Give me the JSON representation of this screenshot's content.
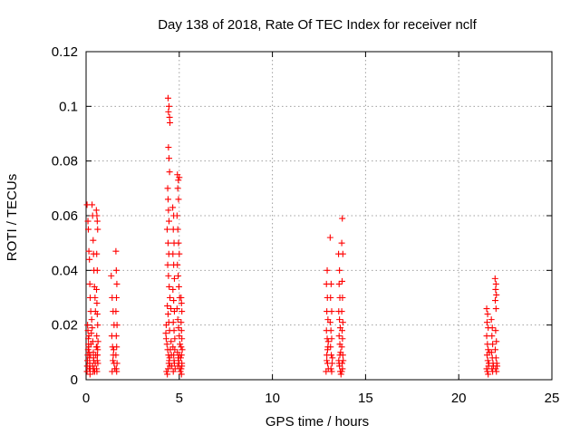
{
  "chart_data": {
    "type": "scatter",
    "title": "Day 138 of 2018, Rate Of TEC Index for receiver nclf",
    "xlabel": "GPS time / hours",
    "ylabel": "ROTI / TECUs",
    "xlim": [
      0,
      25
    ],
    "ylim": [
      0,
      0.12
    ],
    "xticks": [
      0,
      5,
      10,
      15,
      20,
      25
    ],
    "xtick_labels": [
      "0",
      "5",
      "10",
      "15",
      "20",
      "25"
    ],
    "yticks": [
      0,
      0.02,
      0.04,
      0.06,
      0.08,
      0.1,
      0.12
    ],
    "ytick_labels": [
      "0",
      "0.02",
      "0.04",
      "0.06",
      "0.08",
      "0.1",
      "0.12"
    ],
    "grid": true,
    "marker": "+",
    "color": "#ff0000",
    "series": [
      {
        "name": "ROTI",
        "points": [
          [
            0.05,
            0.064
          ],
          [
            0.1,
            0.058
          ],
          [
            0.12,
            0.055
          ],
          [
            0.15,
            0.047
          ],
          [
            0.18,
            0.044
          ],
          [
            0.2,
            0.035
          ],
          [
            0.22,
            0.03
          ],
          [
            0.25,
            0.025
          ],
          [
            0.08,
            0.02
          ],
          [
            0.1,
            0.018
          ],
          [
            0.12,
            0.015
          ],
          [
            0.14,
            0.012
          ],
          [
            0.16,
            0.01
          ],
          [
            0.18,
            0.008
          ],
          [
            0.2,
            0.006
          ],
          [
            0.22,
            0.004
          ],
          [
            0.05,
            0.003
          ],
          [
            0.06,
            0.005
          ],
          [
            0.07,
            0.007
          ],
          [
            0.09,
            0.009
          ],
          [
            0.11,
            0.011
          ],
          [
            0.13,
            0.013
          ],
          [
            0.15,
            0.016
          ],
          [
            0.17,
            0.004
          ],
          [
            0.19,
            0.006
          ],
          [
            0.21,
            0.002
          ],
          [
            0.24,
            0.009
          ],
          [
            0.26,
            0.013
          ],
          [
            0.28,
            0.017
          ],
          [
            0.3,
            0.022
          ],
          [
            0.32,
            0.064
          ],
          [
            0.35,
            0.06
          ],
          [
            0.38,
            0.051
          ],
          [
            0.4,
            0.046
          ],
          [
            0.42,
            0.04
          ],
          [
            0.45,
            0.034
          ],
          [
            0.48,
            0.03
          ],
          [
            0.5,
            0.025
          ],
          [
            0.33,
            0.019
          ],
          [
            0.36,
            0.014
          ],
          [
            0.39,
            0.01
          ],
          [
            0.41,
            0.007
          ],
          [
            0.43,
            0.004
          ],
          [
            0.46,
            0.003
          ],
          [
            0.49,
            0.006
          ],
          [
            0.52,
            0.009
          ],
          [
            0.55,
            0.012
          ],
          [
            0.35,
            0.005
          ],
          [
            0.38,
            0.003
          ],
          [
            0.4,
            0.008
          ],
          [
            0.55,
            0.062
          ],
          [
            0.58,
            0.06
          ],
          [
            0.6,
            0.058
          ],
          [
            0.62,
            0.055
          ],
          [
            0.57,
            0.046
          ],
          [
            0.6,
            0.04
          ],
          [
            0.56,
            0.033
          ],
          [
            0.58,
            0.028
          ],
          [
            0.6,
            0.024
          ],
          [
            0.62,
            0.02
          ],
          [
            0.57,
            0.016
          ],
          [
            0.59,
            0.012
          ],
          [
            0.61,
            0.009
          ],
          [
            0.63,
            0.006
          ],
          [
            0.56,
            0.004
          ],
          [
            0.58,
            0.003
          ],
          [
            0.6,
            0.007
          ],
          [
            0.62,
            0.011
          ],
          [
            0.64,
            0.014
          ],
          [
            1.35,
            0.038
          ],
          [
            1.4,
            0.03
          ],
          [
            1.45,
            0.025
          ],
          [
            1.5,
            0.02
          ],
          [
            1.38,
            0.016
          ],
          [
            1.42,
            0.012
          ],
          [
            1.46,
            0.009
          ],
          [
            1.5,
            0.006
          ],
          [
            1.54,
            0.004
          ],
          [
            1.4,
            0.003
          ],
          [
            1.44,
            0.007
          ],
          [
            1.48,
            0.011
          ],
          [
            1.6,
            0.047
          ],
          [
            1.62,
            0.04
          ],
          [
            1.65,
            0.035
          ],
          [
            1.63,
            0.03
          ],
          [
            1.6,
            0.025
          ],
          [
            1.66,
            0.02
          ],
          [
            1.62,
            0.016
          ],
          [
            1.64,
            0.012
          ],
          [
            1.6,
            0.009
          ],
          [
            1.66,
            0.006
          ],
          [
            1.62,
            0.004
          ],
          [
            1.64,
            0.003
          ],
          [
            4.4,
            0.103
          ],
          [
            4.45,
            0.1
          ],
          [
            4.42,
            0.098
          ],
          [
            4.48,
            0.096
          ],
          [
            4.5,
            0.094
          ],
          [
            4.42,
            0.085
          ],
          [
            4.45,
            0.081
          ],
          [
            4.48,
            0.076
          ],
          [
            4.38,
            0.07
          ],
          [
            4.4,
            0.066
          ],
          [
            4.42,
            0.062
          ],
          [
            4.45,
            0.058
          ],
          [
            4.35,
            0.055
          ],
          [
            4.4,
            0.05
          ],
          [
            4.44,
            0.046
          ],
          [
            4.38,
            0.042
          ],
          [
            4.42,
            0.038
          ],
          [
            4.46,
            0.034
          ],
          [
            4.5,
            0.03
          ],
          [
            4.36,
            0.027
          ],
          [
            4.4,
            0.024
          ],
          [
            4.44,
            0.021
          ],
          [
            4.48,
            0.018
          ],
          [
            4.3,
            0.015
          ],
          [
            4.34,
            0.013
          ],
          [
            4.38,
            0.011
          ],
          [
            4.42,
            0.009
          ],
          [
            4.46,
            0.007
          ],
          [
            4.5,
            0.005
          ],
          [
            4.32,
            0.003
          ],
          [
            4.36,
            0.002
          ],
          [
            4.4,
            0.004
          ],
          [
            4.44,
            0.006
          ],
          [
            4.48,
            0.008
          ],
          [
            4.52,
            0.011
          ],
          [
            4.28,
            0.017
          ],
          [
            4.3,
            0.02
          ],
          [
            4.55,
            0.026
          ],
          [
            4.56,
            0.014
          ],
          [
            4.58,
            0.009
          ],
          [
            4.6,
            0.005
          ],
          [
            4.65,
            0.063
          ],
          [
            4.7,
            0.06
          ],
          [
            4.68,
            0.055
          ],
          [
            4.72,
            0.05
          ],
          [
            4.66,
            0.046
          ],
          [
            4.7,
            0.042
          ],
          [
            4.74,
            0.037
          ],
          [
            4.66,
            0.033
          ],
          [
            4.7,
            0.029
          ],
          [
            4.74,
            0.025
          ],
          [
            4.68,
            0.021
          ],
          [
            4.72,
            0.018
          ],
          [
            4.76,
            0.015
          ],
          [
            4.66,
            0.012
          ],
          [
            4.7,
            0.009
          ],
          [
            4.74,
            0.006
          ],
          [
            4.78,
            0.004
          ],
          [
            4.68,
            0.003
          ],
          [
            4.72,
            0.007
          ],
          [
            4.76,
            0.011
          ],
          [
            4.9,
            0.075
          ],
          [
            4.95,
            0.073
          ],
          [
            5.0,
            0.074
          ],
          [
            4.92,
            0.07
          ],
          [
            4.96,
            0.066
          ],
          [
            4.88,
            0.06
          ],
          [
            4.92,
            0.055
          ],
          [
            4.96,
            0.05
          ],
          [
            5.0,
            0.046
          ],
          [
            4.9,
            0.042
          ],
          [
            4.94,
            0.038
          ],
          [
            4.98,
            0.034
          ],
          [
            5.02,
            0.03
          ],
          [
            4.88,
            0.026
          ],
          [
            4.92,
            0.022
          ],
          [
            4.96,
            0.019
          ],
          [
            5.0,
            0.016
          ],
          [
            5.04,
            0.013
          ],
          [
            4.9,
            0.01
          ],
          [
            4.94,
            0.008
          ],
          [
            4.98,
            0.006
          ],
          [
            5.02,
            0.004
          ],
          [
            5.06,
            0.003
          ],
          [
            4.92,
            0.005
          ],
          [
            4.96,
            0.007
          ],
          [
            5.0,
            0.009
          ],
          [
            5.1,
            0.03
          ],
          [
            5.12,
            0.028
          ],
          [
            5.14,
            0.025
          ],
          [
            5.1,
            0.021
          ],
          [
            5.12,
            0.018
          ],
          [
            5.14,
            0.015
          ],
          [
            5.1,
            0.012
          ],
          [
            5.12,
            0.009
          ],
          [
            5.14,
            0.006
          ],
          [
            5.1,
            0.004
          ],
          [
            5.12,
            0.002
          ],
          [
            5.14,
            0.005
          ],
          [
            5.08,
            0.008
          ],
          [
            5.16,
            0.011
          ],
          [
            12.9,
            0.035
          ],
          [
            12.95,
            0.03
          ],
          [
            12.92,
            0.025
          ],
          [
            12.98,
            0.022
          ],
          [
            12.9,
            0.018
          ],
          [
            12.94,
            0.015
          ],
          [
            12.98,
            0.012
          ],
          [
            12.92,
            0.009
          ],
          [
            12.96,
            0.006
          ],
          [
            13.0,
            0.004
          ],
          [
            12.88,
            0.003
          ],
          [
            12.92,
            0.007
          ],
          [
            12.96,
            0.011
          ],
          [
            13.0,
            0.014
          ],
          [
            12.94,
            0.04
          ],
          [
            13.1,
            0.052
          ],
          [
            13.15,
            0.035
          ],
          [
            13.12,
            0.03
          ],
          [
            13.18,
            0.025
          ],
          [
            13.1,
            0.021
          ],
          [
            13.14,
            0.018
          ],
          [
            13.18,
            0.015
          ],
          [
            13.12,
            0.012
          ],
          [
            13.16,
            0.009
          ],
          [
            13.2,
            0.006
          ],
          [
            13.14,
            0.004
          ],
          [
            13.18,
            0.003
          ],
          [
            13.22,
            0.008
          ],
          [
            13.55,
            0.046
          ],
          [
            13.6,
            0.04
          ],
          [
            13.58,
            0.035
          ],
          [
            13.62,
            0.03
          ],
          [
            13.56,
            0.025
          ],
          [
            13.6,
            0.022
          ],
          [
            13.64,
            0.019
          ],
          [
            13.58,
            0.016
          ],
          [
            13.62,
            0.013
          ],
          [
            13.66,
            0.01
          ],
          [
            13.56,
            0.007
          ],
          [
            13.6,
            0.005
          ],
          [
            13.64,
            0.003
          ],
          [
            13.68,
            0.002
          ],
          [
            13.58,
            0.006
          ],
          [
            13.62,
            0.009
          ],
          [
            13.75,
            0.059
          ],
          [
            13.72,
            0.05
          ],
          [
            13.78,
            0.046
          ],
          [
            13.74,
            0.036
          ],
          [
            13.76,
            0.03
          ],
          [
            13.72,
            0.025
          ],
          [
            13.78,
            0.021
          ],
          [
            13.74,
            0.018
          ],
          [
            13.76,
            0.015
          ],
          [
            13.72,
            0.012
          ],
          [
            13.78,
            0.009
          ],
          [
            13.74,
            0.006
          ],
          [
            13.76,
            0.004
          ],
          [
            13.72,
            0.003
          ],
          [
            13.8,
            0.007
          ],
          [
            21.5,
            0.026
          ],
          [
            21.55,
            0.024
          ],
          [
            21.52,
            0.021
          ],
          [
            21.58,
            0.019
          ],
          [
            21.5,
            0.016
          ],
          [
            21.54,
            0.013
          ],
          [
            21.58,
            0.011
          ],
          [
            21.52,
            0.009
          ],
          [
            21.56,
            0.007
          ],
          [
            21.6,
            0.005
          ],
          [
            21.5,
            0.004
          ],
          [
            21.54,
            0.003
          ],
          [
            21.58,
            0.002
          ],
          [
            21.62,
            0.006
          ],
          [
            21.64,
            0.01
          ],
          [
            21.75,
            0.022
          ],
          [
            21.8,
            0.019
          ],
          [
            21.78,
            0.016
          ],
          [
            21.82,
            0.013
          ],
          [
            21.76,
            0.01
          ],
          [
            21.8,
            0.008
          ],
          [
            21.84,
            0.006
          ],
          [
            21.78,
            0.004
          ],
          [
            21.82,
            0.003
          ],
          [
            21.86,
            0.005
          ],
          [
            21.95,
            0.037
          ],
          [
            22.0,
            0.035
          ],
          [
            21.98,
            0.033
          ],
          [
            22.02,
            0.031
          ],
          [
            21.96,
            0.029
          ],
          [
            22.0,
            0.026
          ],
          [
            21.98,
            0.018
          ],
          [
            22.02,
            0.014
          ],
          [
            21.96,
            0.011
          ],
          [
            22.0,
            0.008
          ],
          [
            22.04,
            0.006
          ],
          [
            21.98,
            0.004
          ],
          [
            22.02,
            0.003
          ],
          [
            22.06,
            0.005
          ]
        ]
      }
    ]
  }
}
